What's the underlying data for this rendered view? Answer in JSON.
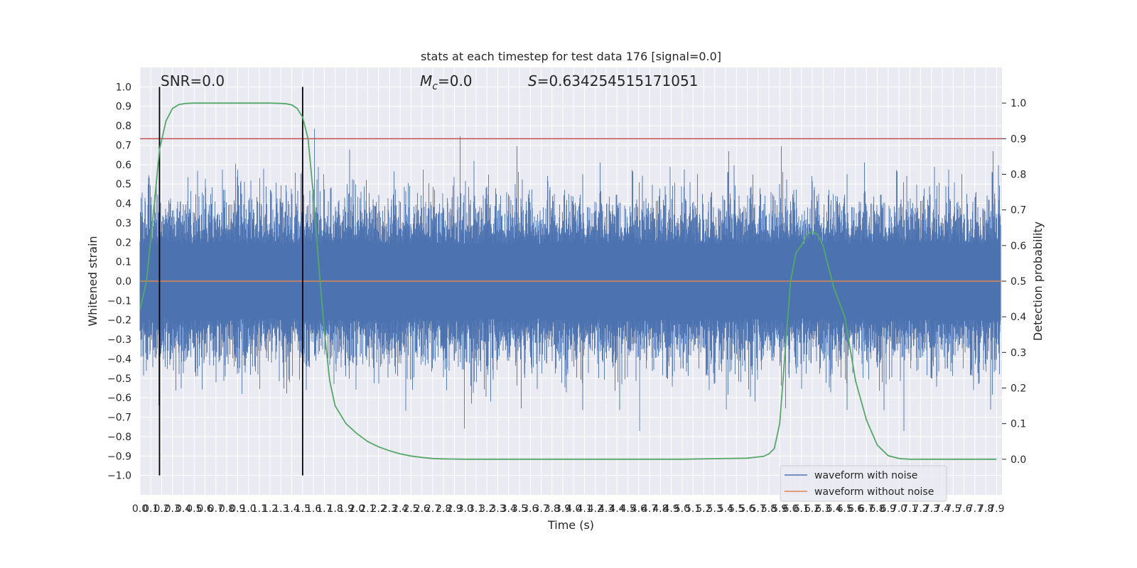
{
  "chart_data": {
    "type": "line",
    "title": "stats at each timestep for test data 176 [signal=0.0]",
    "xlabel": "Time (s)",
    "ylabel": "Whitened strain",
    "y2label": "Detection probability",
    "xlim": [
      0.0,
      7.95
    ],
    "ylim": [
      -1.1,
      1.1
    ],
    "y2lim": [
      -0.1,
      1.1
    ],
    "xticks": [
      0.0,
      0.1,
      0.2,
      0.3,
      0.4,
      0.5,
      0.6,
      0.7,
      0.8,
      0.9,
      1.0,
      1.1,
      1.2,
      1.3,
      1.4,
      1.5,
      1.6,
      1.7,
      1.8,
      1.9,
      2.0,
      2.1,
      2.2,
      2.3,
      2.4,
      2.5,
      2.6,
      2.7,
      2.8,
      2.9,
      3.0,
      3.1,
      3.2,
      3.3,
      3.4,
      3.5,
      3.6,
      3.7,
      3.8,
      3.9,
      4.0,
      4.1,
      4.2,
      4.3,
      4.4,
      4.5,
      4.6,
      4.7,
      4.8,
      4.9,
      5.0,
      5.1,
      5.2,
      5.3,
      5.4,
      5.5,
      5.6,
      5.7,
      5.8,
      5.9,
      6.0,
      6.1,
      6.2,
      6.3,
      6.4,
      6.5,
      6.6,
      6.7,
      6.8,
      6.9,
      7.0,
      7.1,
      7.2,
      7.3,
      7.4,
      7.5,
      7.6,
      7.7,
      7.8,
      7.9
    ],
    "yticks": [
      1.0,
      0.9,
      0.8,
      0.7,
      0.6,
      0.5,
      0.4,
      0.3,
      0.2,
      0.1,
      0.0,
      -0.1,
      -0.2,
      -0.3,
      -0.4,
      -0.5,
      -0.6,
      -0.7,
      -0.8,
      -0.9,
      -1.0
    ],
    "y2ticks": [
      1.0,
      0.9,
      0.8,
      0.7,
      0.6,
      0.5,
      0.4,
      0.3,
      0.2,
      0.1,
      0.0
    ],
    "grid": true,
    "legend_position": "bottom-right",
    "annotations": {
      "snr": "SNR=0.0",
      "mc_symbol": "M",
      "mc_sub": "c",
      "mc_value": "=0.0",
      "s_symbol": "S",
      "s_value": "=0.634254515171051"
    },
    "threshold": {
      "value": 0.9,
      "axis": "right",
      "color": "#c44e52"
    },
    "vlines": [
      {
        "x": 0.18,
        "ymin": -1.0,
        "ymax": 1.0
      },
      {
        "x": 1.5,
        "ymin": -1.0,
        "ymax": 1.0
      }
    ],
    "series": [
      {
        "name": "waveform with noise",
        "color": "#4c72b0"
      },
      {
        "name": "waveform without noise",
        "color": "#dd8452",
        "constant": 0.0
      },
      {
        "color": "#55a868",
        "axis": "right",
        "x": [
          0.0,
          0.06,
          0.12,
          0.18,
          0.24,
          0.3,
          0.36,
          0.42,
          0.5,
          0.6,
          0.8,
          1.0,
          1.2,
          1.3,
          1.35,
          1.4,
          1.45,
          1.5,
          1.55,
          1.6,
          1.65,
          1.7,
          1.75,
          1.8,
          1.9,
          2.0,
          2.1,
          2.2,
          2.3,
          2.4,
          2.5,
          2.6,
          2.7,
          2.8,
          3.0,
          4.0,
          5.0,
          5.6,
          5.75,
          5.8,
          5.85,
          5.9,
          5.95,
          6.0,
          6.05,
          6.1,
          6.15,
          6.2,
          6.25,
          6.3,
          6.35,
          6.4,
          6.5,
          6.6,
          6.7,
          6.8,
          6.9,
          7.0,
          7.1,
          7.2,
          7.9
        ],
        "values": [
          0.42,
          0.5,
          0.68,
          0.87,
          0.95,
          0.985,
          0.996,
          0.999,
          1.0,
          1.0,
          1.0,
          1.0,
          1.0,
          0.999,
          0.998,
          0.995,
          0.985,
          0.96,
          0.9,
          0.74,
          0.54,
          0.36,
          0.22,
          0.15,
          0.1,
          0.072,
          0.05,
          0.035,
          0.024,
          0.015,
          0.009,
          0.005,
          0.002,
          0.001,
          0.0,
          0.0,
          0.0,
          0.003,
          0.008,
          0.015,
          0.03,
          0.1,
          0.3,
          0.5,
          0.58,
          0.6,
          0.63,
          0.64,
          0.63,
          0.6,
          0.54,
          0.48,
          0.4,
          0.22,
          0.11,
          0.04,
          0.01,
          0.002,
          0.0,
          0.0,
          0.0
        ]
      }
    ]
  }
}
